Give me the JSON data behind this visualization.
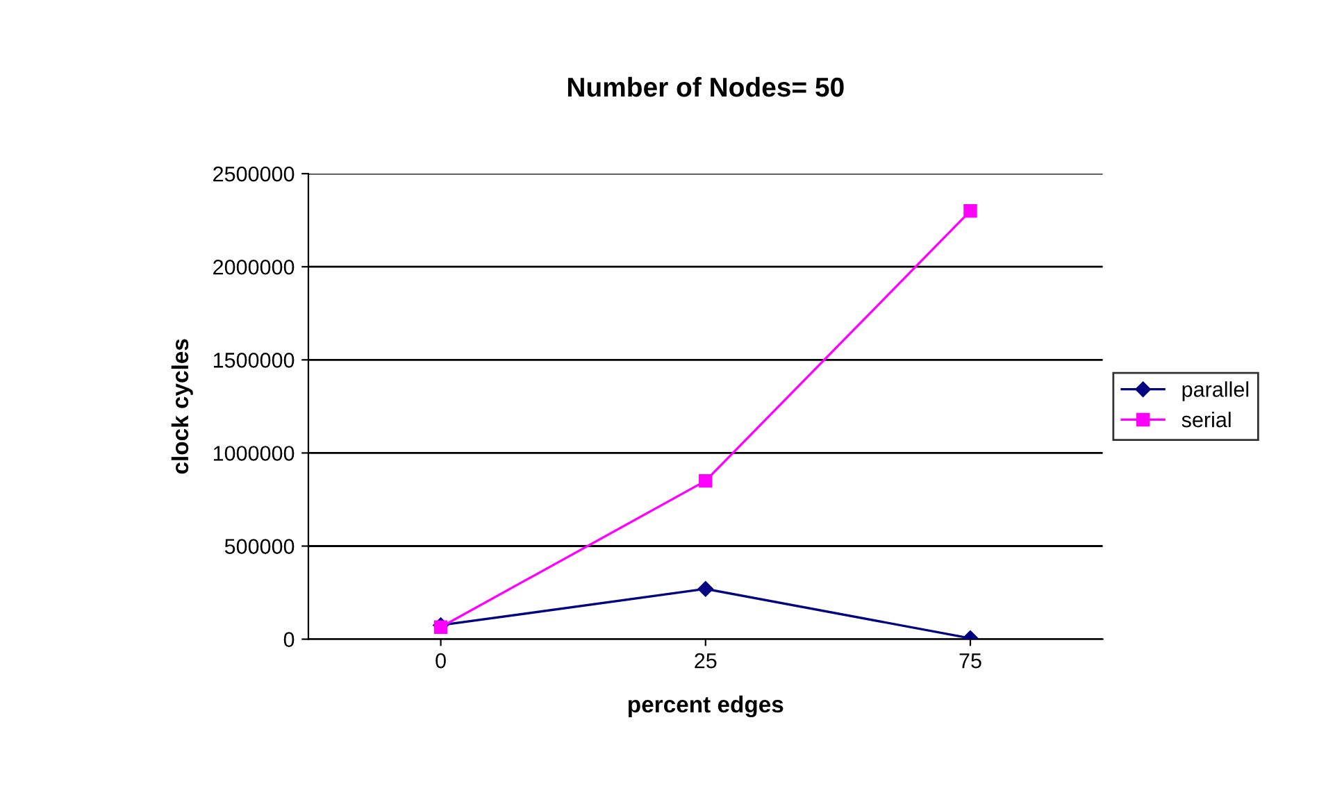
{
  "chart_data": {
    "type": "line",
    "title": "Number of Nodes= 50",
    "xlabel": "percent edges",
    "ylabel": "clock cycles",
    "categories": [
      "0",
      "25",
      "75"
    ],
    "series": [
      {
        "name": "parallel",
        "color": "#000080",
        "marker": "diamond",
        "values": [
          75000,
          270000,
          5000
        ]
      },
      {
        "name": "serial",
        "color": "#ff00ff",
        "marker": "square",
        "values": [
          65000,
          850000,
          2300000
        ]
      }
    ],
    "ylim": [
      0,
      2500000
    ],
    "yticks": [
      0,
      500000,
      1000000,
      1500000,
      2000000,
      2500000
    ],
    "grid": "y",
    "legend": "right",
    "line_style": "solid"
  }
}
